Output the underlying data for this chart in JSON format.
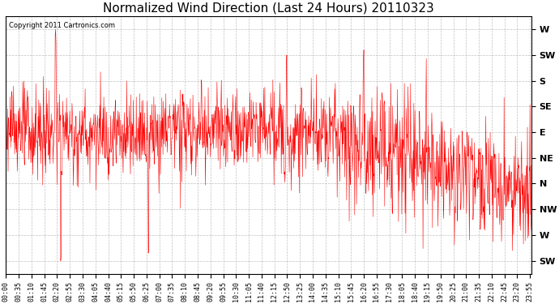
{
  "title": "Normalized Wind Direction (Last 24 Hours) 20110323",
  "copyright_text": "Copyright 2011 Cartronics.com",
  "line_color": "#ff0000",
  "background_color": "#ffffff",
  "grid_color": "#b0b0b0",
  "ytick_labels": [
    "W",
    "SW",
    "S",
    "SE",
    "E",
    "NE",
    "N",
    "NW",
    "W",
    "SW"
  ],
  "ytick_values": [
    10,
    9,
    8,
    7,
    6,
    5,
    4,
    3,
    2,
    1
  ],
  "ylim": [
    0.5,
    10.5
  ],
  "title_fontsize": 11,
  "tick_fontsize": 6,
  "ylabel_fontsize": 8,
  "x_tick_interval_min": 35,
  "total_minutes": 1440,
  "n_points": 1440,
  "seed": 123,
  "figwidth": 6.9,
  "figheight": 3.75,
  "dpi": 100
}
